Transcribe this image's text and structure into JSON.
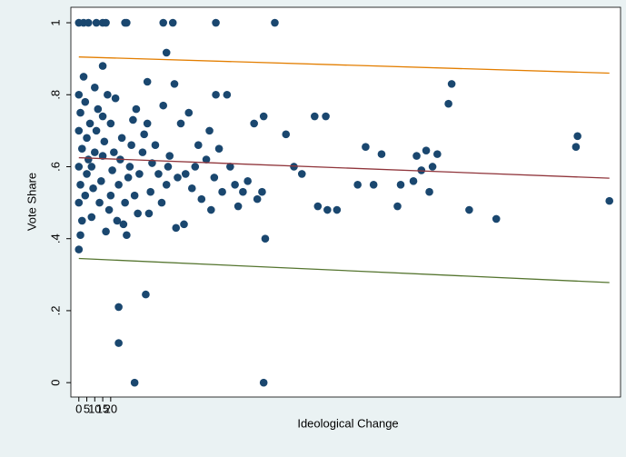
{
  "chart_data": {
    "type": "scatter",
    "xlabel": "Ideological Change",
    "ylabel": "Vote Share",
    "xlim": [
      -5,
      340
    ],
    "ylim": [
      -0.04,
      1.043
    ],
    "xticks": [
      0,
      5,
      10,
      15,
      20
    ],
    "yticks": [
      0,
      {
        "value": 0.2,
        "label": ".2"
      },
      {
        "value": 0.4,
        "label": ".4"
      },
      {
        "value": 0.6,
        "label": ".6"
      },
      {
        "value": 0.8,
        "label": ".8"
      },
      1
    ],
    "series": [
      {
        "color": "#1a476f",
        "x": [
          0,
          3,
          6,
          11,
          15,
          17,
          29,
          30,
          53,
          59,
          86,
          123,
          55,
          15,
          43,
          0,
          1,
          2,
          0,
          1,
          0,
          2,
          0,
          1,
          0,
          3,
          4,
          5,
          6,
          5,
          7,
          4,
          8,
          9,
          8,
          10,
          11,
          12,
          10,
          13,
          14,
          15,
          16,
          15,
          18,
          17,
          19,
          20,
          21,
          22,
          20,
          23,
          24,
          25,
          26,
          27,
          25,
          25,
          28,
          30,
          29,
          31,
          32,
          33,
          34,
          36,
          35,
          37,
          38,
          40,
          41,
          43,
          44,
          45,
          46,
          42,
          35,
          48,
          50,
          52,
          53,
          55,
          56,
          57,
          60,
          61,
          62,
          64,
          66,
          67,
          69,
          71,
          73,
          75,
          77,
          80,
          82,
          83,
          85,
          86,
          88,
          90,
          93,
          95,
          98,
          100,
          103,
          106,
          110,
          112,
          115,
          116,
          117,
          116,
          130,
          135,
          140,
          148,
          150,
          155,
          156,
          162,
          175,
          180,
          185,
          190,
          200,
          202,
          210,
          212,
          215,
          218,
          220,
          225,
          222,
          232,
          234,
          245,
          262,
          312,
          313,
          333
        ],
        "values": [
          1,
          1,
          1,
          1,
          1,
          1,
          1,
          1,
          1,
          1,
          1,
          1,
          0.917,
          0.88,
          0.836,
          0.37,
          0.41,
          0.45,
          0.5,
          0.55,
          0.6,
          0.65,
          0.7,
          0.75,
          0.8,
          0.85,
          0.52,
          0.58,
          0.62,
          0.68,
          0.72,
          0.78,
          0.46,
          0.54,
          0.6,
          0.64,
          0.7,
          0.76,
          0.82,
          0.5,
          0.56,
          0.63,
          0.67,
          0.74,
          0.8,
          0.42,
          0.48,
          0.52,
          0.59,
          0.64,
          0.72,
          0.79,
          0.45,
          0.55,
          0.62,
          0.68,
          0.21,
          0.11,
          0.44,
          0.41,
          0.5,
          0.57,
          0.6,
          0.66,
          0.73,
          0.76,
          0.52,
          0.47,
          0.58,
          0.64,
          0.69,
          0.72,
          0.47,
          0.53,
          0.61,
          0.245,
          0,
          0.66,
          0.58,
          0.5,
          0.77,
          0.55,
          0.6,
          0.63,
          0.83,
          0.43,
          0.57,
          0.72,
          0.44,
          0.58,
          0.75,
          0.54,
          0.6,
          0.66,
          0.51,
          0.62,
          0.7,
          0.48,
          0.57,
          0.8,
          0.65,
          0.53,
          0.8,
          0.6,
          0.55,
          0.49,
          0.53,
          0.56,
          0.72,
          0.51,
          0.53,
          0.74,
          0.4,
          0,
          0.69,
          0.6,
          0.58,
          0.74,
          0.49,
          0.74,
          0.48,
          0.48,
          0.55,
          0.655,
          0.55,
          0.635,
          0.49,
          0.55,
          0.56,
          0.63,
          0.59,
          0.645,
          0.53,
          0.635,
          0.6,
          0.775,
          0.83,
          0.48,
          0.455,
          0.655,
          0.685,
          0.505
        ]
      }
    ],
    "lines": [
      {
        "color": "#e37e00",
        "x": [
          0,
          333
        ],
        "values": [
          0.905,
          0.86
        ]
      },
      {
        "color": "#90353b",
        "x": [
          0,
          333
        ],
        "values": [
          0.625,
          0.568
        ]
      },
      {
        "color": "#55752f",
        "x": [
          0,
          333
        ],
        "values": [
          0.345,
          0.278
        ]
      }
    ]
  }
}
